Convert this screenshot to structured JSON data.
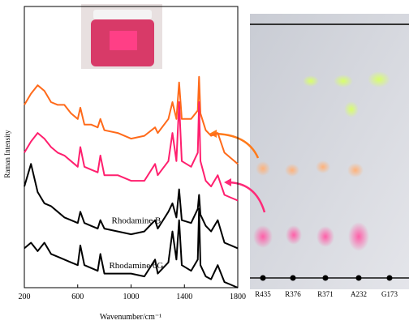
{
  "chart_data": {
    "type": "line",
    "x_label": "Wavenumber/cm⁻¹",
    "y_label": "Raman Intensity",
    "xlim": [
      200,
      1800
    ],
    "xticks": [
      200,
      600,
      1000,
      1400,
      1800
    ],
    "ylim": [
      0,
      100
    ],
    "x": [
      200,
      250,
      300,
      350,
      400,
      450,
      500,
      550,
      600,
      620,
      650,
      700,
      750,
      770,
      800,
      900,
      1000,
      1100,
      1180,
      1200,
      1280,
      1310,
      1340,
      1360,
      1380,
      1450,
      1500,
      1510,
      1520,
      1560,
      1600,
      1650,
      1700,
      1750,
      1800
    ],
    "series": [
      {
        "color": "#ff6a1a",
        "values": [
          65,
          69,
          72,
          70,
          66,
          65,
          65,
          62,
          60,
          64,
          58,
          58,
          57,
          60,
          56,
          55,
          53,
          54,
          57,
          55,
          60,
          66,
          60,
          73,
          60,
          60,
          63,
          75,
          62,
          56,
          54,
          55,
          48,
          46,
          44
        ]
      },
      {
        "color": "#ff1f6e",
        "values": [
          48,
          52,
          55,
          53,
          50,
          48,
          47,
          45,
          43,
          50,
          43,
          42,
          41,
          47,
          40,
          40,
          38,
          38,
          44,
          40,
          45,
          55,
          45,
          66,
          45,
          43,
          48,
          66,
          45,
          38,
          36,
          40,
          33,
          32,
          31
        ]
      },
      {
        "name": "Rhodamine B",
        "color": "#000000",
        "values": [
          36,
          44,
          34,
          30,
          29,
          27,
          25,
          24,
          23,
          27,
          23,
          22,
          21,
          24,
          21,
          20,
          19,
          20,
          24,
          21,
          27,
          30,
          25,
          35,
          24,
          23,
          28,
          33,
          26,
          22,
          20,
          24,
          16,
          15,
          14
        ]
      },
      {
        "name": "Rhodamine 6G",
        "color": "#000000",
        "values": [
          14,
          16,
          13,
          16,
          12,
          11,
          10,
          9,
          8,
          15,
          8,
          7,
          6,
          12,
          5,
          5,
          5,
          4,
          10,
          5,
          9,
          20,
          10,
          24,
          8,
          6,
          10,
          28,
          8,
          4,
          3,
          8,
          2,
          1,
          0
        ]
      }
    ]
  },
  "plate_lanes": [
    "R435",
    "R376",
    "R371",
    "A232",
    "G173"
  ]
}
